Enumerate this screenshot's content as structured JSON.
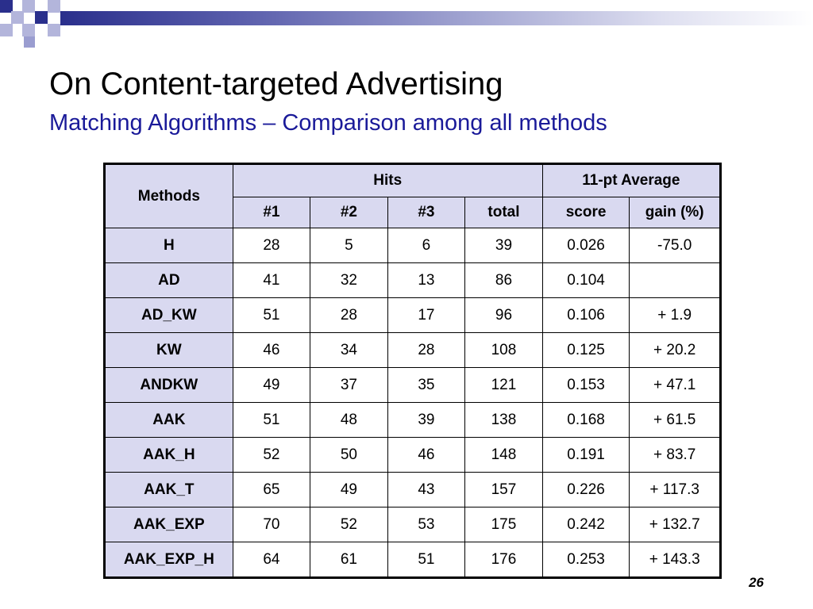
{
  "slide": {
    "title": "On Content-targeted Advertising",
    "subtitle": "Matching Algorithms – Comparison among all methods",
    "slide_number": "26"
  },
  "colors": {
    "header_cell": "#d9d9f0",
    "subtitle": "#1a1a99",
    "deco_dark": "#2a2f8c",
    "deco_light": "#9a9dd0"
  },
  "table": {
    "methods_header": "Methods",
    "hits_header": "Hits",
    "avg_header": "11-pt Average",
    "subheaders": [
      "#1",
      "#2",
      "#3",
      "total",
      "score",
      "gain (%)"
    ],
    "rows": [
      {
        "method": "H",
        "h1": "28",
        "h2": "5",
        "h3": "6",
        "total": "39",
        "score": "0.026",
        "gain": "-75.0"
      },
      {
        "method": "AD",
        "h1": "41",
        "h2": "32",
        "h3": "13",
        "total": "86",
        "score": "0.104",
        "gain": ""
      },
      {
        "method": "AD_KW",
        "h1": "51",
        "h2": "28",
        "h3": "17",
        "total": "96",
        "score": "0.106",
        "gain": "+ 1.9"
      },
      {
        "method": "KW",
        "h1": "46",
        "h2": "34",
        "h3": "28",
        "total": "108",
        "score": "0.125",
        "gain": "+ 20.2"
      },
      {
        "method": "ANDKW",
        "h1": "49",
        "h2": "37",
        "h3": "35",
        "total": "121",
        "score": "0.153",
        "gain": "+ 47.1"
      },
      {
        "method": "AAK",
        "h1": "51",
        "h2": "48",
        "h3": "39",
        "total": "138",
        "score": "0.168",
        "gain": "+ 61.5"
      },
      {
        "method": "AAK_H",
        "h1": "52",
        "h2": "50",
        "h3": "46",
        "total": "148",
        "score": "0.191",
        "gain": "+ 83.7"
      },
      {
        "method": "AAK_T",
        "h1": "65",
        "h2": "49",
        "h3": "43",
        "total": "157",
        "score": "0.226",
        "gain": "+ 117.3"
      },
      {
        "method": "AAK_EXP",
        "h1": "70",
        "h2": "52",
        "h3": "53",
        "total": "175",
        "score": "0.242",
        "gain": "+ 132.7"
      },
      {
        "method": "AAK_EXP_H",
        "h1": "64",
        "h2": "61",
        "h3": "51",
        "total": "176",
        "score": "0.253",
        "gain": "+ 143.3"
      }
    ]
  }
}
